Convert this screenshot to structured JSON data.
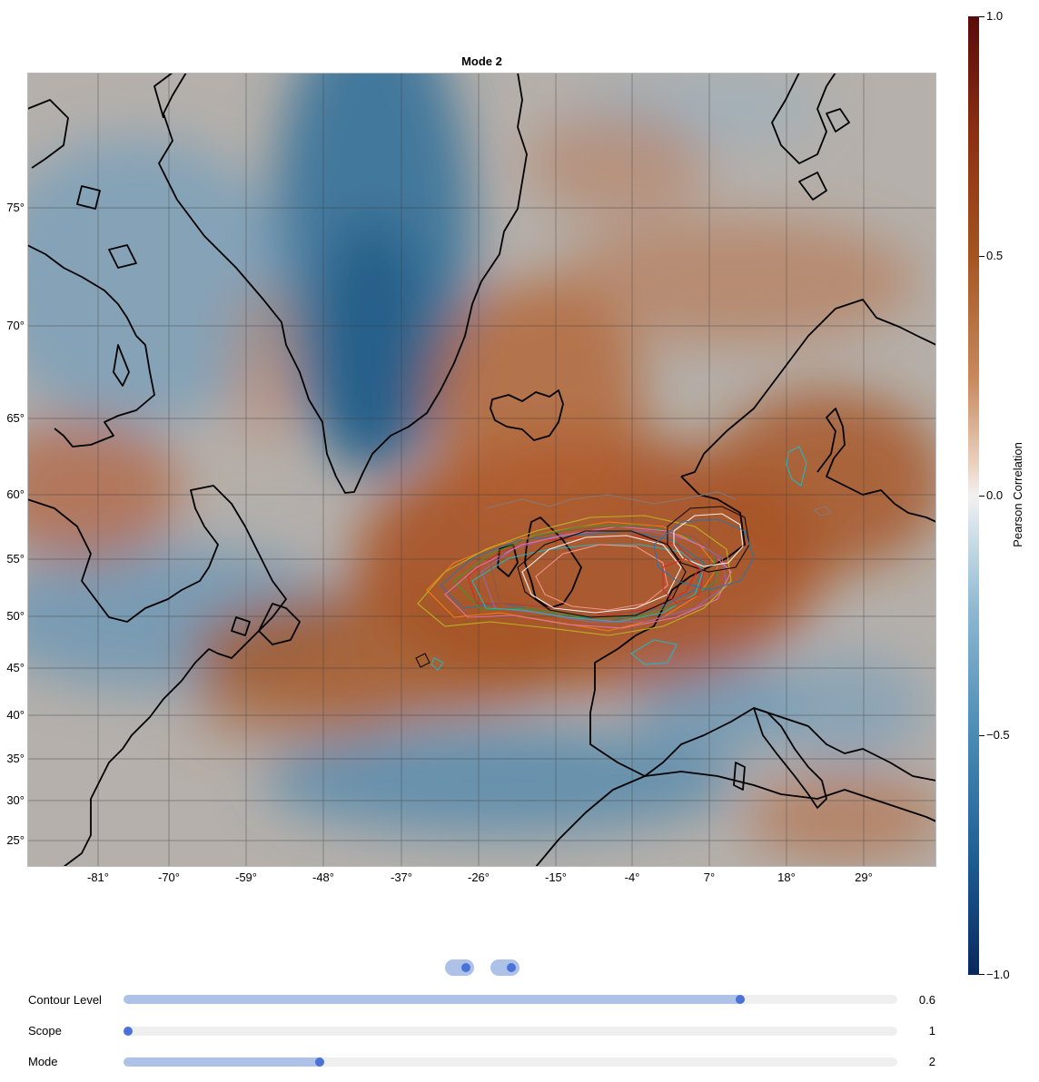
{
  "plot": {
    "title": "Mode 2",
    "lat_ticks": [
      "75°",
      "70°",
      "65°",
      "60°",
      "55°",
      "50°",
      "45°",
      "40°",
      "35°",
      "30°",
      "25°"
    ],
    "lon_ticks": [
      "-81°",
      "-70°",
      "-59°",
      "-48°",
      "-37°",
      "-26°",
      "-15°",
      "-4°",
      "7°",
      "18°",
      "29°"
    ]
  },
  "colorbar": {
    "title": "Pearson Correlation",
    "ticks": [
      "1.0",
      "0.5",
      "0.0",
      "−0.5",
      "−1.0"
    ],
    "min": -1.0,
    "max": 1.0,
    "colormap": [
      "#5a0a0a",
      "#a5541f",
      "#f3f1ef",
      "#4a8bb6",
      "#08285e"
    ]
  },
  "controls": {
    "toggles": [
      {
        "name": "toggle-1",
        "on": true
      },
      {
        "name": "toggle-2",
        "on": true
      }
    ],
    "sliders": [
      {
        "label": "Contour Level",
        "value": "0.6",
        "fraction": 0.8
      },
      {
        "label": "Scope",
        "value": "1",
        "fraction": 0.0
      },
      {
        "label": "Mode",
        "value": "2",
        "fraction": 0.25
      }
    ]
  },
  "colors": {
    "positive": "#a5541f",
    "negative": "#3f7ea8",
    "neutral": "#b7b0ab",
    "coast": "#000000",
    "accent": "#4a72d8"
  }
}
